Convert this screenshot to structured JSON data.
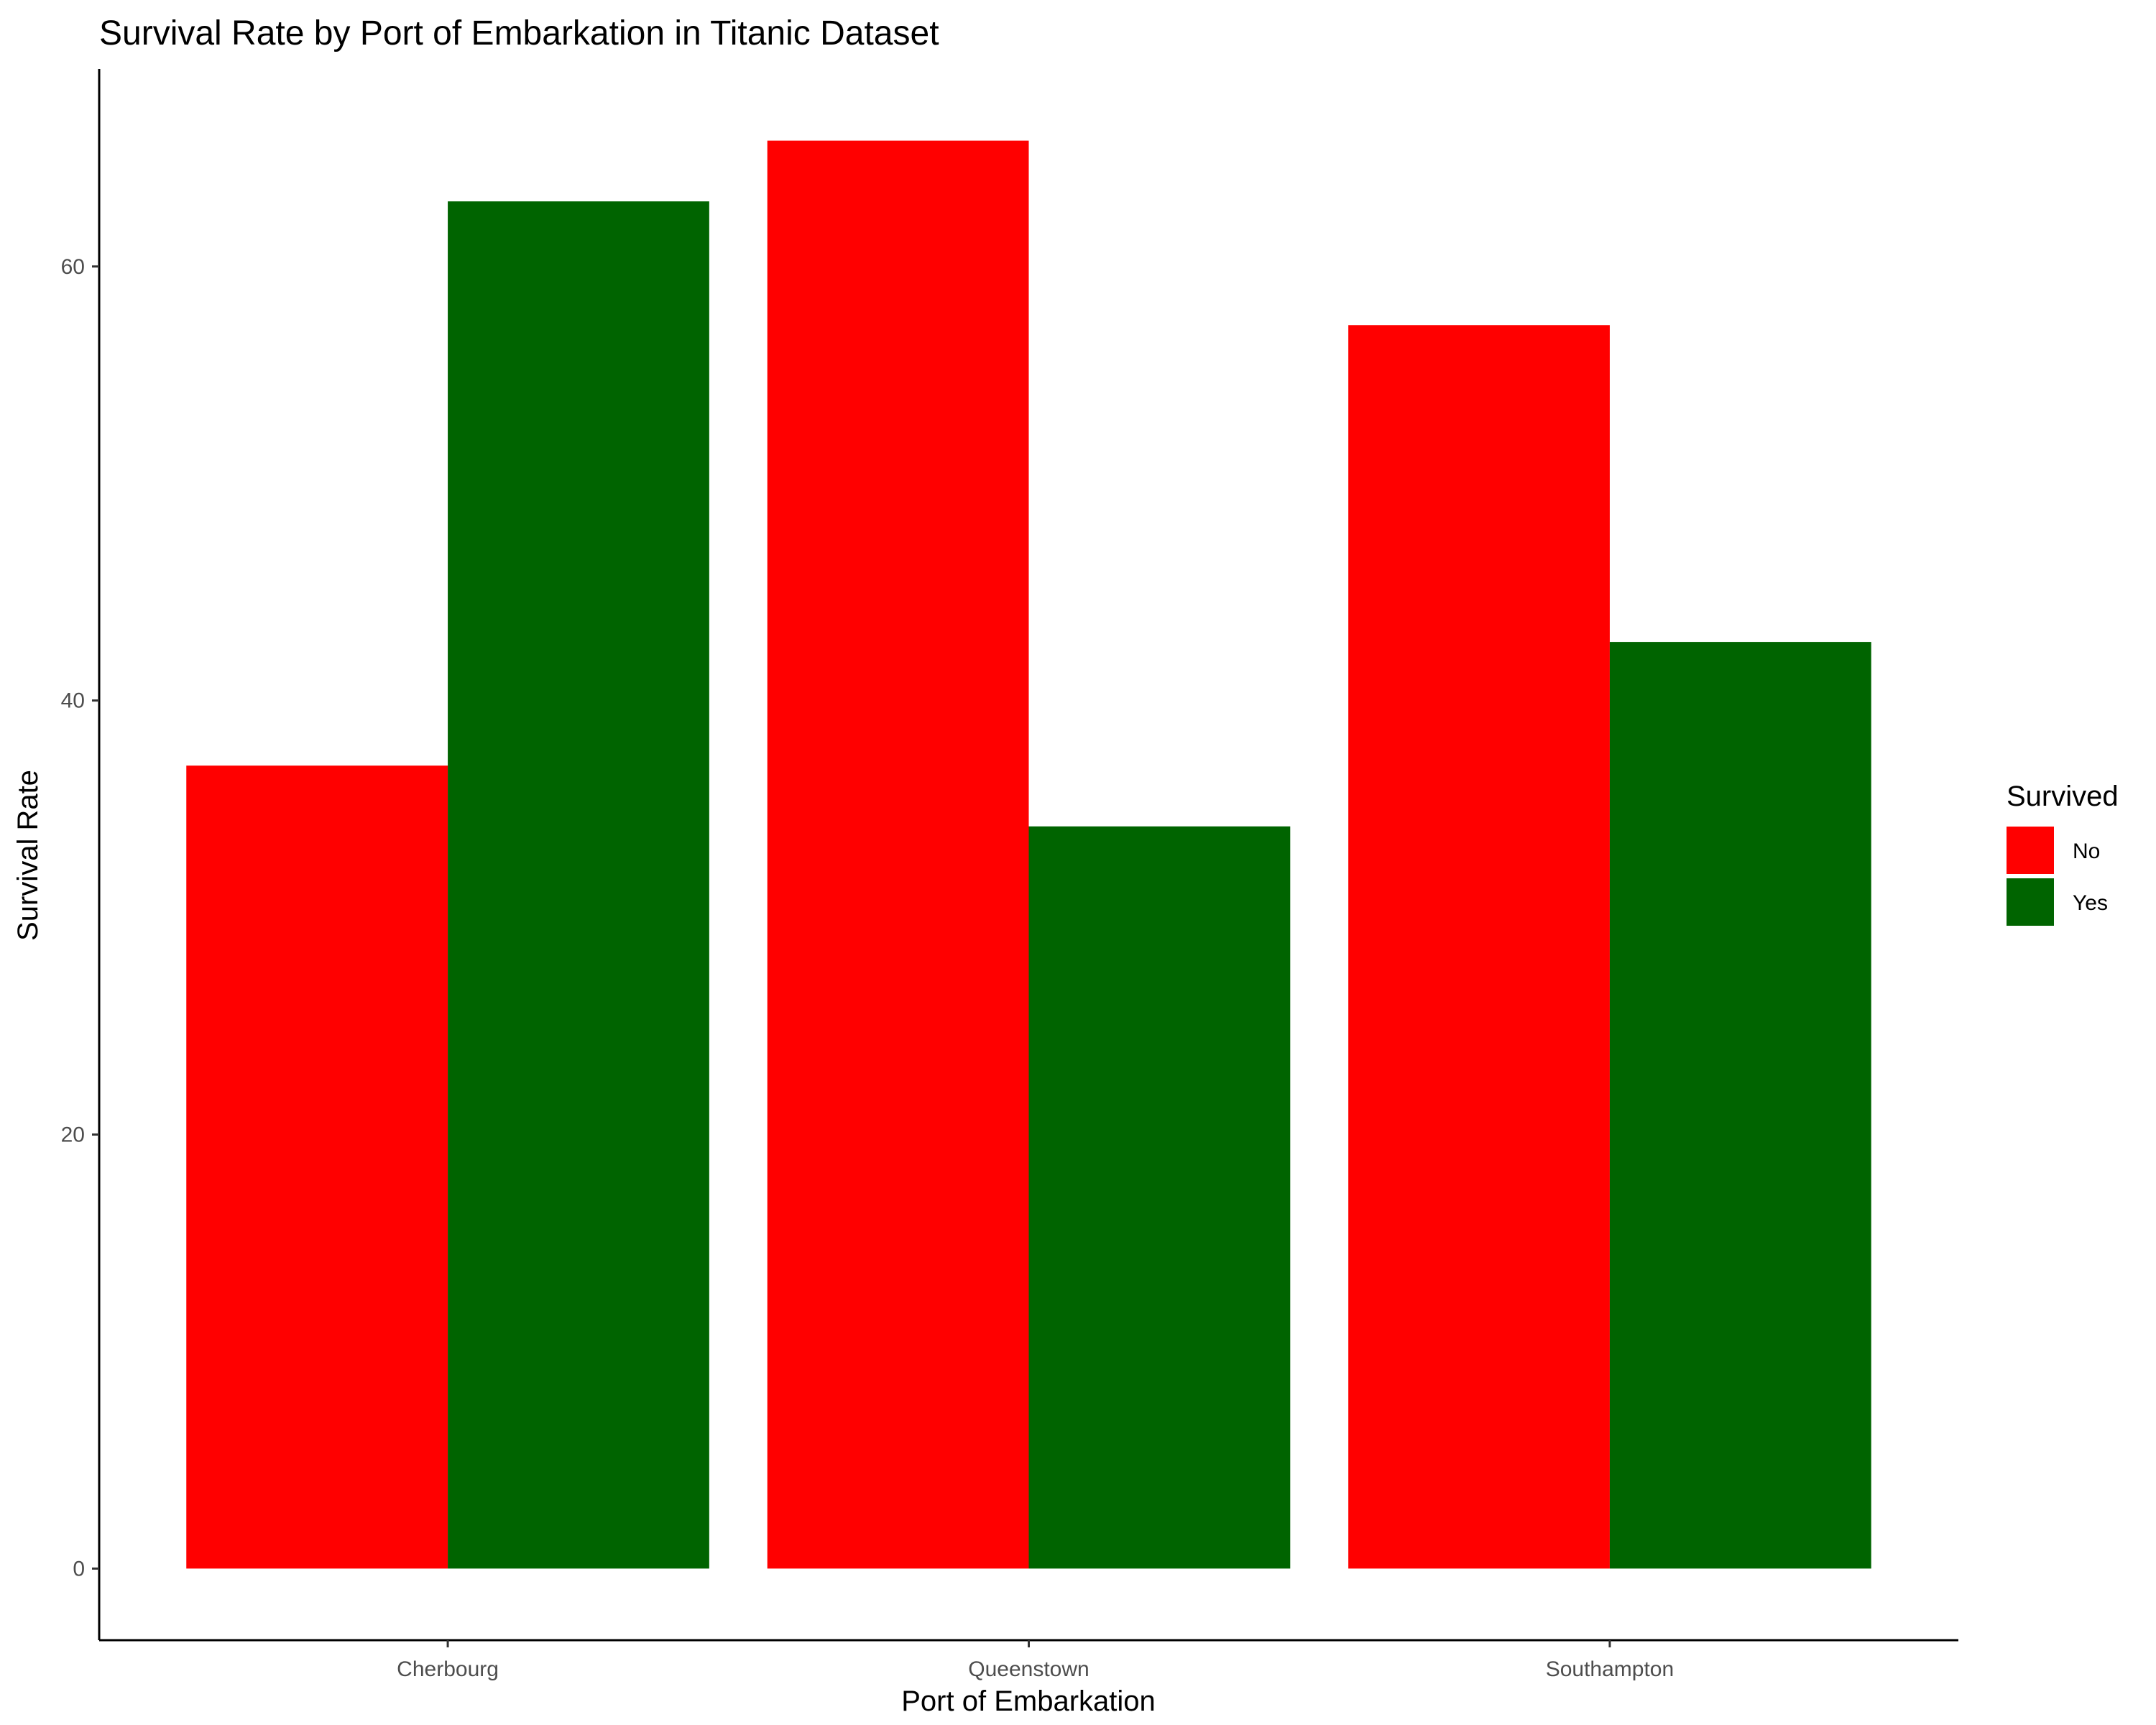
{
  "chart_data": {
    "type": "bar",
    "title": "Survival Rate by Port of Embarkation in Titanic Dataset",
    "xlabel": "Port of Embarkation",
    "ylabel": "Survival Rate",
    "categories": [
      "Cherbourg",
      "Queenstown",
      "Southampton"
    ],
    "series": [
      {
        "name": "No",
        "color": "#ff0000",
        "values": [
          37.0,
          65.8,
          57.3
        ]
      },
      {
        "name": "Yes",
        "color": "#006400",
        "values": [
          63.0,
          34.2,
          42.7
        ]
      }
    ],
    "ylim": [
      -3.3,
      69.1
    ],
    "yticks": [
      0,
      20,
      40,
      60
    ],
    "legend": {
      "title": "Survived",
      "position": "right"
    },
    "grid": false
  }
}
